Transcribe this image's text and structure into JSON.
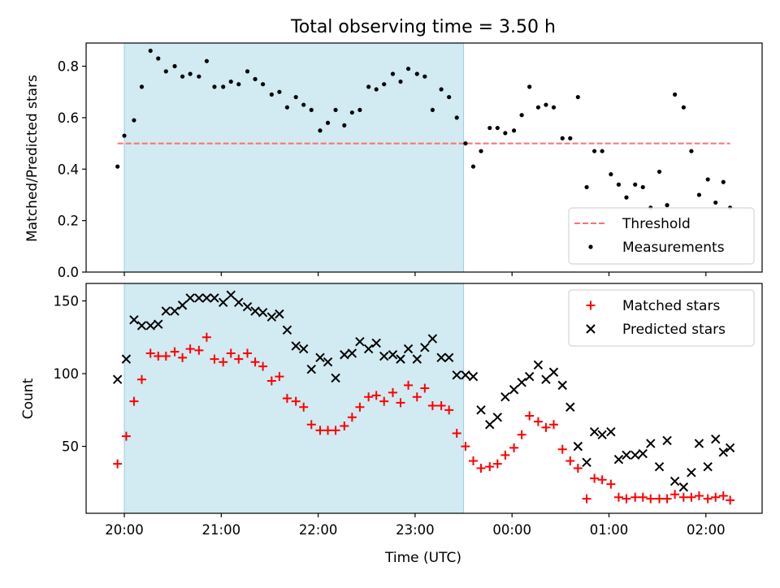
{
  "title": "Total observing time = 3.50 h",
  "colors": {
    "shade": "#add8e6",
    "threshold": "#ff6f6f",
    "measurement": "#000000",
    "matched": "#ff0000",
    "predicted": "#000000"
  },
  "chart_data": [
    {
      "type": "scatter",
      "ylabel": "Matched/Predicted stars",
      "xlim": [
        -0.125,
        6.6
      ],
      "ylim": [
        0,
        0.89
      ],
      "x_unit": "hours since 20:00 UTC",
      "yticks": [
        0.0,
        0.2,
        0.4,
        0.6,
        0.8
      ],
      "ytick_labels": [
        "0.0",
        "0.2",
        "0.4",
        "0.6",
        "0.8"
      ],
      "shaded_x_range": [
        0.0,
        3.5
      ],
      "grid": false,
      "legend": {
        "placement": "lower-right",
        "entries": [
          "Threshold",
          "Measurements"
        ]
      },
      "threshold": {
        "name": "Threshold",
        "y": 0.5,
        "x_range": [
          -0.07,
          6.25
        ]
      },
      "series": [
        {
          "name": "Measurements",
          "x": [
            -0.07,
            0.0,
            0.1,
            0.18,
            0.27,
            0.35,
            0.43,
            0.52,
            0.6,
            0.68,
            0.77,
            0.85,
            0.93,
            1.02,
            1.1,
            1.18,
            1.27,
            1.35,
            1.43,
            1.52,
            1.6,
            1.68,
            1.77,
            1.85,
            1.93,
            2.02,
            2.1,
            2.18,
            2.27,
            2.35,
            2.43,
            2.52,
            2.6,
            2.68,
            2.77,
            2.85,
            2.93,
            3.02,
            3.1,
            3.18,
            3.27,
            3.35,
            3.43,
            3.52,
            3.6,
            3.68,
            3.77,
            3.85,
            3.93,
            4.02,
            4.1,
            4.18,
            4.27,
            4.35,
            4.43,
            4.52,
            4.6,
            4.68,
            4.77,
            4.85,
            4.93,
            5.02,
            5.1,
            5.18,
            5.27,
            5.35,
            5.43,
            5.52,
            5.6,
            5.68,
            5.77,
            5.85,
            5.93,
            6.02,
            6.1,
            6.18,
            6.25
          ],
          "y": [
            0.41,
            0.53,
            0.59,
            0.72,
            0.86,
            0.83,
            0.78,
            0.8,
            0.76,
            0.77,
            0.76,
            0.82,
            0.72,
            0.72,
            0.74,
            0.73,
            0.78,
            0.75,
            0.73,
            0.69,
            0.7,
            0.64,
            0.68,
            0.65,
            0.63,
            0.55,
            0.58,
            0.63,
            0.57,
            0.62,
            0.63,
            0.72,
            0.71,
            0.73,
            0.77,
            0.74,
            0.79,
            0.77,
            0.76,
            0.63,
            0.71,
            0.68,
            0.6,
            0.5,
            0.41,
            0.47,
            0.56,
            0.56,
            0.54,
            0.55,
            0.61,
            0.72,
            0.64,
            0.65,
            0.64,
            0.52,
            0.52,
            0.68,
            0.33,
            0.47,
            0.47,
            0.38,
            0.34,
            0.29,
            0.34,
            0.33,
            0.25,
            0.39,
            0.26,
            0.69,
            0.64,
            0.47,
            0.3,
            0.36,
            0.27,
            0.35,
            0.25
          ]
        }
      ]
    },
    {
      "type": "scatter",
      "ylabel": "Count",
      "xlabel": "Time (UTC)",
      "xlim": [
        -0.4,
        6.6
      ],
      "ylim": [
        4,
        162
      ],
      "x_unit": "hours since 20:00 UTC",
      "xticks": [
        0,
        1,
        2,
        3,
        4,
        5,
        6
      ],
      "xtick_labels": [
        "20:00",
        "21:00",
        "22:00",
        "23:00",
        "00:00",
        "01:00",
        "02:00"
      ],
      "yticks": [
        50,
        100,
        150
      ],
      "ytick_labels": [
        "50",
        "100",
        "150"
      ],
      "shaded_x_range": [
        0.0,
        3.5
      ],
      "grid": false,
      "legend": {
        "placement": "top-right",
        "entries": [
          "Matched stars",
          "Predicted stars"
        ]
      },
      "series": [
        {
          "name": "Matched stars",
          "marker": "+",
          "x": [
            -0.07,
            0.02,
            0.1,
            0.18,
            0.27,
            0.35,
            0.43,
            0.52,
            0.6,
            0.68,
            0.77,
            0.85,
            0.93,
            1.02,
            1.1,
            1.18,
            1.27,
            1.35,
            1.43,
            1.52,
            1.6,
            1.68,
            1.77,
            1.85,
            1.93,
            2.02,
            2.1,
            2.18,
            2.27,
            2.35,
            2.43,
            2.52,
            2.6,
            2.68,
            2.77,
            2.85,
            2.93,
            3.02,
            3.1,
            3.18,
            3.27,
            3.35,
            3.43,
            3.52,
            3.6,
            3.68,
            3.77,
            3.85,
            3.93,
            4.02,
            4.1,
            4.18,
            4.27,
            4.35,
            4.43,
            4.52,
            4.6,
            4.68,
            4.77,
            4.85,
            4.93,
            5.02,
            5.1,
            5.18,
            5.27,
            5.35,
            5.43,
            5.52,
            5.6,
            5.68,
            5.77,
            5.85,
            5.93,
            6.02,
            6.1,
            6.18,
            6.25
          ],
          "y": [
            38,
            57,
            81,
            96,
            114,
            112,
            112,
            115,
            111,
            117,
            116,
            125,
            110,
            108,
            114,
            110,
            114,
            108,
            105,
            95,
            98,
            83,
            81,
            77,
            65,
            61,
            61,
            61,
            64,
            70,
            77,
            84,
            85,
            81,
            87,
            80,
            92,
            84,
            90,
            78,
            78,
            75,
            59,
            50,
            40,
            35,
            36,
            38,
            44,
            49,
            58,
            71,
            67,
            63,
            65,
            48,
            40,
            35,
            14,
            28,
            27,
            24,
            15,
            14,
            15,
            15,
            14,
            14,
            14,
            17,
            15,
            15,
            16,
            14,
            15,
            16,
            13
          ]
        },
        {
          "name": "Predicted stars",
          "marker": "x",
          "x": [
            -0.07,
            0.02,
            0.1,
            0.18,
            0.27,
            0.35,
            0.43,
            0.52,
            0.6,
            0.68,
            0.77,
            0.85,
            0.93,
            1.02,
            1.1,
            1.18,
            1.27,
            1.35,
            1.43,
            1.52,
            1.6,
            1.68,
            1.77,
            1.85,
            1.93,
            2.02,
            2.1,
            2.18,
            2.27,
            2.35,
            2.43,
            2.52,
            2.6,
            2.68,
            2.77,
            2.85,
            2.93,
            3.02,
            3.1,
            3.18,
            3.27,
            3.35,
            3.43,
            3.52,
            3.6,
            3.68,
            3.77,
            3.85,
            3.93,
            4.02,
            4.1,
            4.18,
            4.27,
            4.35,
            4.43,
            4.52,
            4.6,
            4.68,
            4.77,
            4.85,
            4.93,
            5.02,
            5.1,
            5.18,
            5.27,
            5.35,
            5.43,
            5.52,
            5.6,
            5.68,
            5.77,
            5.85,
            5.93,
            6.02,
            6.1,
            6.18,
            6.25
          ],
          "y": [
            96,
            110,
            137,
            133,
            133,
            134,
            143,
            143,
            147,
            152,
            152,
            152,
            152,
            149,
            154,
            149,
            146,
            143,
            142,
            139,
            141,
            130,
            119,
            117,
            103,
            111,
            108,
            97,
            113,
            114,
            122,
            117,
            121,
            112,
            113,
            110,
            117,
            110,
            118,
            124,
            111,
            111,
            99,
            99,
            98,
            75,
            65,
            70,
            84,
            89,
            94,
            98,
            106,
            96,
            101,
            92,
            77,
            50,
            39,
            60,
            58,
            60,
            41,
            44,
            44,
            45,
            52,
            36,
            54,
            26,
            22,
            32,
            52,
            36,
            55,
            46,
            49
          ]
        }
      ]
    }
  ]
}
